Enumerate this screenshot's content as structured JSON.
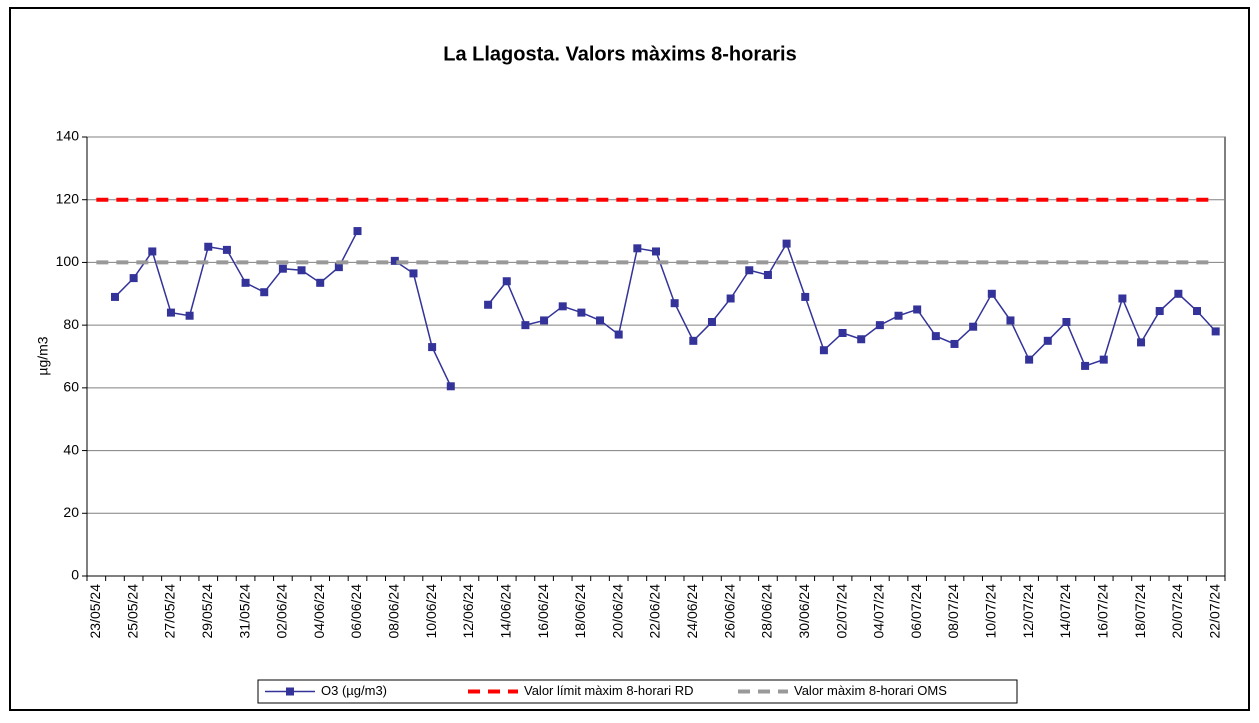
{
  "chart_data": {
    "type": "line",
    "title": "La Llagosta. Valors màxims 8-horaris",
    "y_label": "µg/m3",
    "categories": [
      "23/05/24",
      null,
      "25/05/24",
      null,
      "27/05/24",
      null,
      "29/05/24",
      null,
      "31/05/24",
      null,
      "02/06/24",
      null,
      "04/06/24",
      null,
      "06/06/24",
      null,
      "08/06/24",
      null,
      "10/06/24",
      null,
      "12/06/24",
      null,
      "14/06/24",
      null,
      "16/06/24",
      null,
      "18/06/24",
      null,
      "20/06/24",
      null,
      "22/06/24",
      null,
      "24/06/24",
      null,
      "26/06/24",
      null,
      "28/06/24",
      null,
      "30/06/24",
      null,
      "02/07/24",
      null,
      "04/07/24",
      null,
      "06/07/24",
      null,
      "08/07/24",
      null,
      "10/07/24",
      null,
      "12/07/24",
      null,
      "14/07/24",
      null,
      "16/07/24",
      null,
      "18/07/24",
      null,
      "20/07/24",
      null,
      "22/07/24"
    ],
    "series": [
      {
        "name": "O3 (µg/m3)",
        "color": "#333399",
        "marker": true,
        "dashed": false,
        "values": [
          null,
          89,
          95,
          103.5,
          84,
          83,
          105,
          104,
          93.5,
          90.5,
          98,
          97.5,
          93.5,
          98.5,
          110,
          null,
          100.5,
          96.5,
          73,
          60.5,
          null,
          86.5,
          94,
          80,
          81.5,
          86,
          84,
          81.5,
          77,
          104.5,
          103.5,
          87,
          75,
          81,
          88.5,
          97.5,
          96,
          106,
          89,
          72,
          77.5,
          75.5,
          80,
          83,
          85,
          76.5,
          74,
          79.5,
          90,
          81.5,
          69,
          75,
          81,
          67,
          69,
          88.5,
          74.5,
          84.5,
          90,
          84.5,
          78
        ]
      },
      {
        "name": "Valor límit màxim 8-horari RD",
        "color": "#ff0000",
        "marker": false,
        "dashed": true,
        "values": [
          120,
          120,
          120,
          120,
          120,
          120,
          120,
          120,
          120,
          120,
          120,
          120,
          120,
          120,
          120,
          120,
          120,
          120,
          120,
          120,
          120,
          120,
          120,
          120,
          120,
          120,
          120,
          120,
          120,
          120,
          120,
          120,
          120,
          120,
          120,
          120,
          120,
          120,
          120,
          120,
          120,
          120,
          120,
          120,
          120,
          120,
          120,
          120,
          120,
          120,
          120,
          120,
          120,
          120,
          120,
          120,
          120,
          120,
          120,
          120,
          120
        ]
      },
      {
        "name": "Valor màxim 8-horari OMS",
        "color": "#999999",
        "marker": false,
        "dashed": true,
        "values": [
          100,
          100,
          100,
          100,
          100,
          100,
          100,
          100,
          100,
          100,
          100,
          100,
          100,
          100,
          100,
          100,
          100,
          100,
          100,
          100,
          100,
          100,
          100,
          100,
          100,
          100,
          100,
          100,
          100,
          100,
          100,
          100,
          100,
          100,
          100,
          100,
          100,
          100,
          100,
          100,
          100,
          100,
          100,
          100,
          100,
          100,
          100,
          100,
          100,
          100,
          100,
          100,
          100,
          100,
          100,
          100,
          100,
          100,
          100,
          100,
          100
        ]
      }
    ],
    "ylim": [
      0,
      140
    ],
    "yticks": [
      0,
      20,
      40,
      60,
      80,
      100,
      120,
      140
    ],
    "grid": true,
    "legend": "bottom"
  }
}
